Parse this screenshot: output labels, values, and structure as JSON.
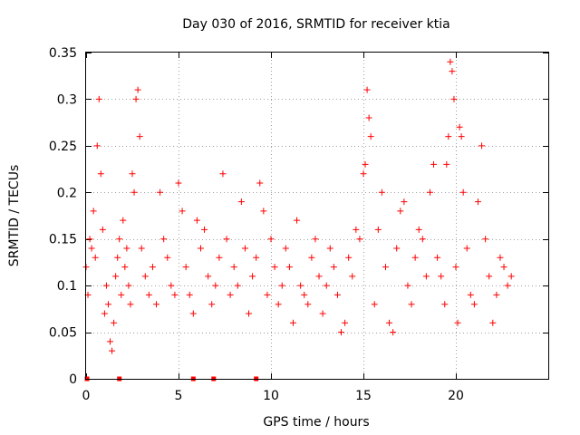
{
  "chart_data": {
    "type": "scatter",
    "title": "Day 030 of 2016, SRMTID for receiver ktia",
    "xlabel": "GPS time / hours",
    "ylabel": "SRMTID / TECUs",
    "xlim": [
      0,
      25
    ],
    "ylim": [
      0,
      0.35
    ],
    "x_ticks": [
      0,
      5,
      10,
      15,
      20
    ],
    "x_tick_labels": [
      "0",
      "5",
      "10",
      "15",
      "20"
    ],
    "y_ticks": [
      0,
      0.05,
      0.1,
      0.15,
      0.2,
      0.25,
      0.3,
      0.35
    ],
    "y_tick_labels": [
      "0",
      "0.05",
      "0.1",
      "0.15",
      "0.2",
      "0.25",
      "0.3",
      "0.35"
    ],
    "grid": true,
    "marker": "+",
    "color": "#ff0000",
    "series": [
      {
        "name": "SRMTID",
        "x": [
          0.0,
          0.1,
          0.2,
          0.3,
          0.4,
          0.5,
          0.6,
          0.7,
          0.8,
          0.9,
          1.0,
          1.1,
          1.2,
          1.3,
          1.4,
          1.5,
          1.6,
          1.7,
          1.8,
          1.9,
          2.0,
          2.1,
          2.2,
          2.3,
          2.4,
          2.5,
          2.6,
          2.7,
          2.8,
          2.9,
          3.0,
          3.2,
          3.4,
          3.6,
          3.8,
          4.0,
          4.2,
          4.4,
          4.6,
          4.8,
          5.0,
          5.2,
          5.4,
          5.6,
          5.8,
          6.0,
          6.2,
          6.4,
          6.6,
          6.8,
          7.0,
          7.2,
          7.4,
          7.6,
          7.8,
          8.0,
          8.2,
          8.4,
          8.6,
          8.8,
          9.0,
          9.2,
          9.4,
          9.6,
          9.8,
          10.0,
          10.2,
          10.4,
          10.6,
          10.8,
          11.0,
          11.2,
          11.4,
          11.6,
          11.8,
          12.0,
          12.2,
          12.4,
          12.6,
          12.8,
          13.0,
          13.2,
          13.4,
          13.6,
          13.8,
          14.0,
          14.2,
          14.4,
          14.6,
          14.8,
          15.0,
          15.1,
          15.2,
          15.3,
          15.4,
          15.6,
          15.8,
          16.0,
          16.2,
          16.4,
          16.6,
          16.8,
          17.0,
          17.2,
          17.4,
          17.6,
          17.8,
          18.0,
          18.2,
          18.4,
          18.6,
          18.8,
          19.0,
          19.2,
          19.4,
          19.5,
          19.6,
          19.7,
          19.8,
          19.9,
          20.0,
          20.1,
          20.2,
          20.3,
          20.4,
          20.6,
          20.8,
          21.0,
          21.2,
          21.4,
          21.6,
          21.8,
          22.0,
          22.2,
          22.4,
          22.6,
          22.8,
          23.0
        ],
        "y": [
          0.12,
          0.09,
          0.15,
          0.14,
          0.18,
          0.13,
          0.25,
          0.3,
          0.22,
          0.16,
          0.07,
          0.1,
          0.08,
          0.04,
          0.03,
          0.06,
          0.11,
          0.13,
          0.15,
          0.09,
          0.17,
          0.12,
          0.14,
          0.1,
          0.08,
          0.22,
          0.2,
          0.3,
          0.31,
          0.26,
          0.14,
          0.11,
          0.09,
          0.12,
          0.08,
          0.2,
          0.15,
          0.13,
          0.1,
          0.09,
          0.21,
          0.18,
          0.12,
          0.09,
          0.07,
          0.17,
          0.14,
          0.16,
          0.11,
          0.08,
          0.1,
          0.13,
          0.22,
          0.15,
          0.09,
          0.12,
          0.1,
          0.19,
          0.14,
          0.07,
          0.11,
          0.13,
          0.21,
          0.18,
          0.09,
          0.15,
          0.12,
          0.08,
          0.1,
          0.14,
          0.12,
          0.06,
          0.17,
          0.1,
          0.09,
          0.08,
          0.13,
          0.15,
          0.11,
          0.07,
          0.1,
          0.14,
          0.12,
          0.09,
          0.05,
          0.06,
          0.13,
          0.11,
          0.16,
          0.15,
          0.22,
          0.23,
          0.31,
          0.28,
          0.26,
          0.08,
          0.16,
          0.2,
          0.12,
          0.06,
          0.05,
          0.14,
          0.18,
          0.19,
          0.1,
          0.08,
          0.13,
          0.16,
          0.15,
          0.11,
          0.2,
          0.23,
          0.13,
          0.11,
          0.08,
          0.23,
          0.26,
          0.34,
          0.33,
          0.3,
          0.12,
          0.06,
          0.27,
          0.26,
          0.2,
          0.14,
          0.09,
          0.08,
          0.19,
          0.25,
          0.15,
          0.11,
          0.06,
          0.09,
          0.13,
          0.12,
          0.1,
          0.11
        ]
      }
    ],
    "zero_marks_x": [
      0.05,
      1.8,
      5.8,
      6.9,
      9.2
    ]
  }
}
